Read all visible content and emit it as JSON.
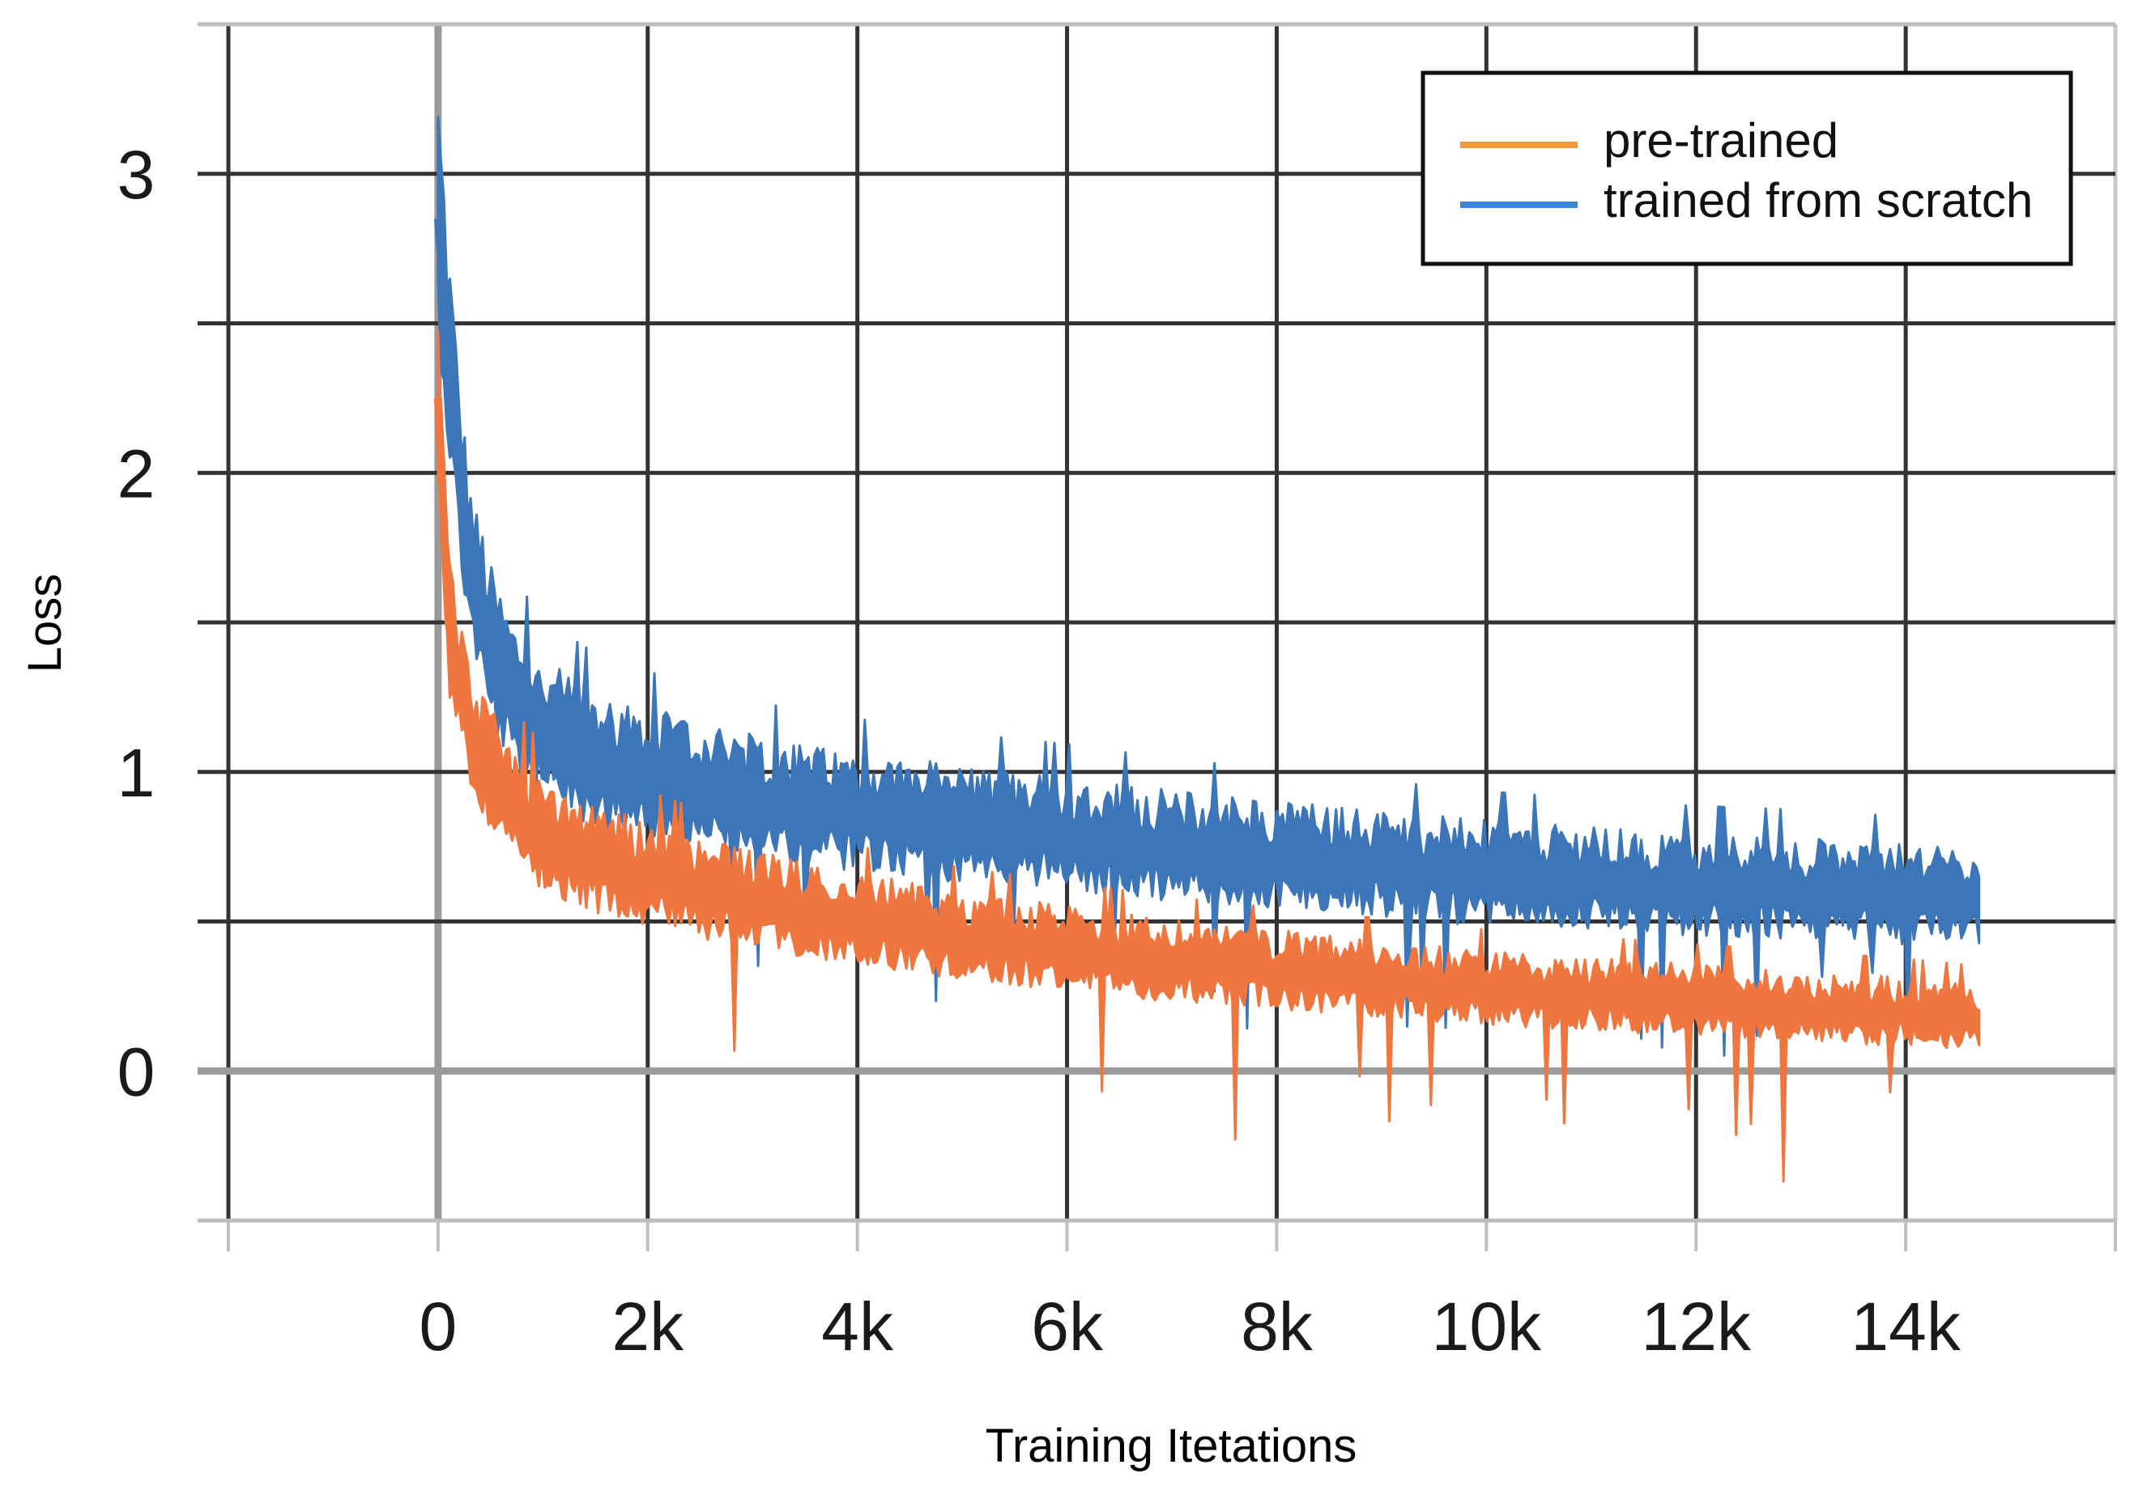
{
  "chart_data": {
    "type": "line",
    "title": "",
    "xlabel": "Training Itetations",
    "ylabel": "Loss",
    "xlim": [
      -2000,
      16000
    ],
    "ylim": [
      -0.5,
      3.5
    ],
    "x_ticks": [
      0,
      2000,
      4000,
      6000,
      8000,
      10000,
      12000,
      14000
    ],
    "x_tick_labels": [
      "0",
      "2k",
      "4k",
      "6k",
      "8k",
      "10k",
      "12k",
      "14k"
    ],
    "y_ticks": [
      0,
      1,
      2,
      3
    ],
    "y_tick_labels": [
      "0",
      "1",
      "2",
      "3"
    ],
    "grid": true,
    "legend_position": "top-right",
    "x": [
      0,
      100,
      200,
      300,
      500,
      700,
      1000,
      1500,
      2000,
      2500,
      3000,
      3500,
      4000,
      5000,
      6000,
      7000,
      8000,
      9000,
      10000,
      11000,
      12000,
      13000,
      14000,
      14700
    ],
    "series": [
      {
        "name": "pre-trained",
        "color": "#f0763f",
        "legend_color": "#f59a3a",
        "values": [
          2.25,
          1.5,
          1.3,
          1.15,
          0.98,
          0.88,
          0.78,
          0.7,
          0.65,
          0.6,
          0.56,
          0.53,
          0.5,
          0.44,
          0.4,
          0.36,
          0.33,
          0.3,
          0.27,
          0.25,
          0.23,
          0.21,
          0.19,
          0.17
        ]
      },
      {
        "name": "trained from scratch",
        "color": "#3d76b8",
        "legend_color": "#3a87d8",
        "values": [
          2.85,
          2.4,
          2.0,
          1.7,
          1.4,
          1.25,
          1.12,
          1.03,
          0.98,
          0.94,
          0.9,
          0.87,
          0.85,
          0.81,
          0.78,
          0.74,
          0.71,
          0.68,
          0.65,
          0.63,
          0.61,
          0.6,
          0.58,
          0.57
        ]
      }
    ]
  }
}
